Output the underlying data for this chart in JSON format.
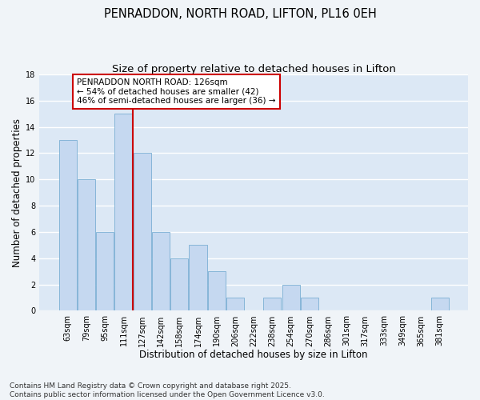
{
  "title": "PENRADDON, NORTH ROAD, LIFTON, PL16 0EH",
  "subtitle": "Size of property relative to detached houses in Lifton",
  "xlabel": "Distribution of detached houses by size in Lifton",
  "ylabel": "Number of detached properties",
  "categories": [
    "63sqm",
    "79sqm",
    "95sqm",
    "111sqm",
    "127sqm",
    "142sqm",
    "158sqm",
    "174sqm",
    "190sqm",
    "206sqm",
    "222sqm",
    "238sqm",
    "254sqm",
    "270sqm",
    "286sqm",
    "301sqm",
    "317sqm",
    "333sqm",
    "349sqm",
    "365sqm",
    "381sqm"
  ],
  "values": [
    13,
    10,
    6,
    15,
    12,
    6,
    4,
    5,
    3,
    1,
    0,
    1,
    2,
    1,
    0,
    0,
    0,
    0,
    0,
    0,
    1
  ],
  "bar_color": "#c5d8f0",
  "bar_edge_color": "#7aafd4",
  "vline_color": "#cc0000",
  "vline_pos": 4.5,
  "annotation_text": "PENRADDON NORTH ROAD: 126sqm\n← 54% of detached houses are smaller (42)\n46% of semi-detached houses are larger (36) →",
  "annotation_box_color": "#ffffff",
  "annotation_box_edge": "#cc0000",
  "ylim": [
    0,
    18
  ],
  "yticks": [
    0,
    2,
    4,
    6,
    8,
    10,
    12,
    14,
    16,
    18
  ],
  "plot_bg_color": "#dce8f5",
  "fig_bg_color": "#f0f4f8",
  "grid_color": "#ffffff",
  "title_fontsize": 10.5,
  "subtitle_fontsize": 9.5,
  "axis_label_fontsize": 8.5,
  "tick_fontsize": 7,
  "annotation_fontsize": 7.5,
  "footer": "Contains HM Land Registry data © Crown copyright and database right 2025.\nContains public sector information licensed under the Open Government Licence v3.0.",
  "footer_fontsize": 6.5
}
